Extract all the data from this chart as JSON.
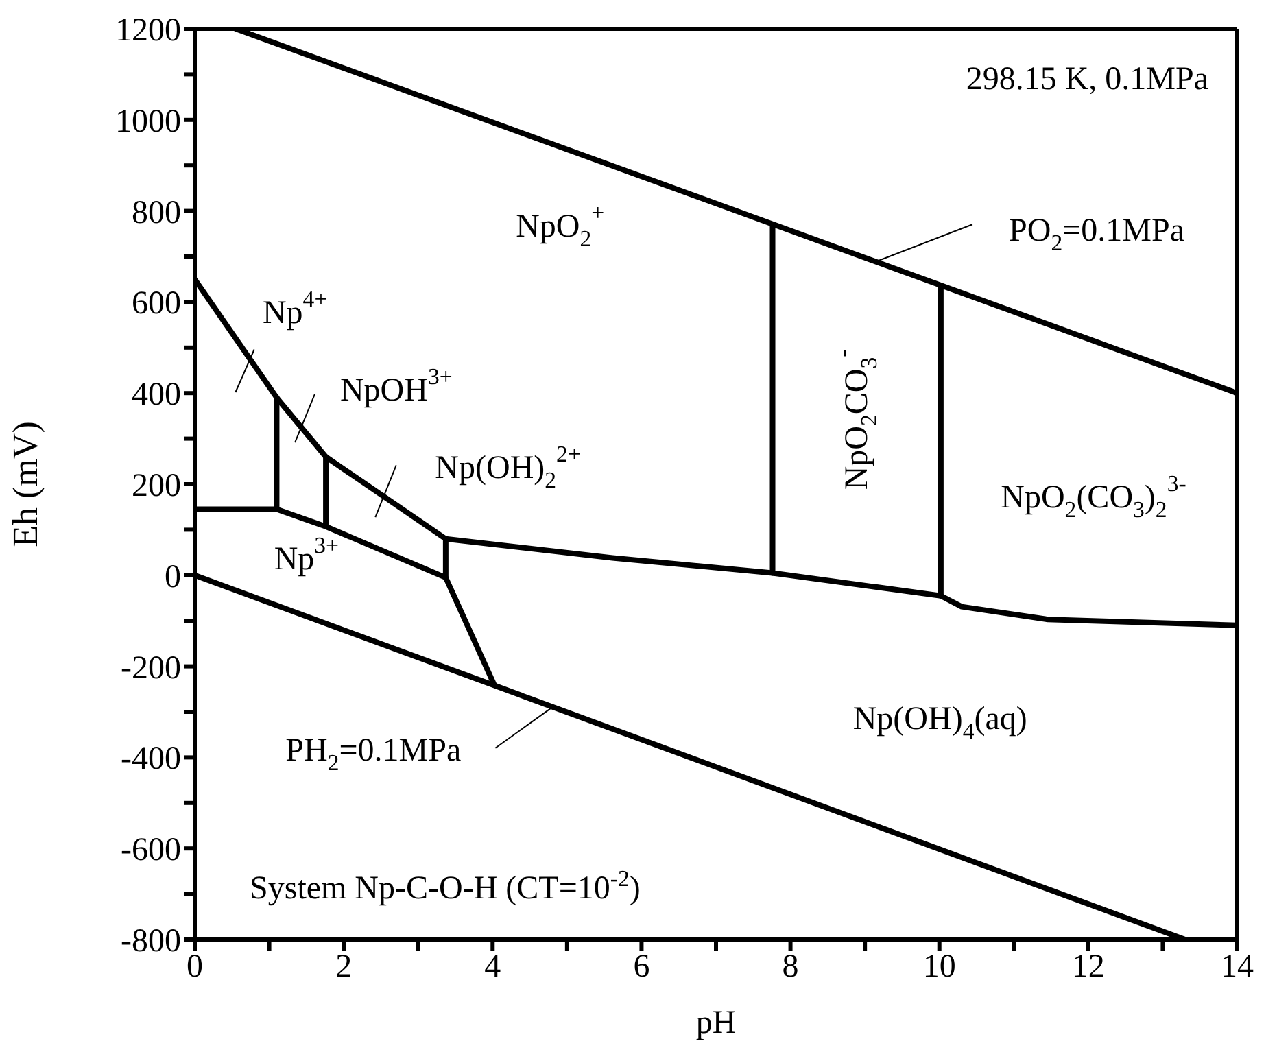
{
  "chart_data": {
    "type": "line",
    "xlabel": "pH",
    "ylabel": "Eh (mV)",
    "xlim": [
      0,
      14
    ],
    "ylim": [
      -800,
      1200
    ],
    "xticks": [
      0,
      {
        "value": 1,
        "label": null
      },
      2,
      {
        "value": 3,
        "label": null
      },
      4,
      {
        "value": 5,
        "label": null
      },
      6,
      {
        "value": 7,
        "label": null
      },
      8,
      {
        "value": 9,
        "label": null
      },
      10,
      {
        "value": 11,
        "label": null
      },
      12,
      {
        "value": 13,
        "label": null
      },
      14
    ],
    "yticks": [
      -800,
      {
        "value": -700,
        "label": null
      },
      -600,
      {
        "value": -500,
        "label": null
      },
      -400,
      {
        "value": -300,
        "label": null
      },
      -200,
      {
        "value": -100,
        "label": null
      },
      0,
      {
        "value": 100,
        "label": null
      },
      200,
      {
        "value": 300,
        "label": null
      },
      400,
      {
        "value": 500,
        "label": null
      },
      600,
      {
        "value": 700,
        "label": null
      },
      800,
      {
        "value": 900,
        "label": null
      },
      1000,
      {
        "value": 1100,
        "label": null
      },
      1200
    ],
    "marker": "none",
    "line_style": "solid",
    "series": [
      {
        "color": "#000000",
        "x": [
          0.55,
          14
        ],
        "values": [
          1200,
          400
        ]
      },
      {
        "color": "#000000",
        "x": [
          0,
          13.3
        ],
        "values": [
          0,
          -800
        ]
      },
      {
        "color": "#000000",
        "x": [
          0,
          1.1,
          1.76,
          3.37,
          5.61,
          7.76,
          10.02,
          10.3,
          11.46,
          14
        ],
        "values": [
          650,
          390,
          260,
          80,
          38,
          5,
          -45,
          -69,
          -97,
          -110
        ]
      },
      {
        "color": "#000000",
        "x": [
          0,
          1.1,
          1.76,
          3.37,
          4.02
        ],
        "values": [
          145,
          145,
          107,
          -5,
          -240
        ]
      },
      {
        "color": "#000000",
        "x": [
          1.1,
          1.1
        ],
        "values": [
          145,
          390
        ]
      },
      {
        "color": "#000000",
        "x": [
          1.76,
          1.76
        ],
        "values": [
          107,
          260
        ]
      },
      {
        "color": "#000000",
        "x": [
          3.37,
          3.37
        ],
        "values": [
          -5,
          80
        ]
      },
      {
        "color": "#000000",
        "x": [
          7.76,
          7.76
        ],
        "values": [
          5,
          766
        ]
      },
      {
        "color": "#000000",
        "x": [
          10.02,
          10.02
        ],
        "values": [
          -45,
          632
        ]
      }
    ],
    "annotations": [
      "298.15 K, 0.1MPa",
      "System  Np-C-O-H (CT=10$^{-2}$)",
      "NpO$_{2}$$^{+}$",
      "Np$^{4+}$",
      "NpOH$^{3+}$",
      "Np(OH)$_{2}$$^{2+}$",
      "Np$^{3+}$",
      "NpO$_{2}$CO$_{3}$$^{-}$",
      "NpO$_{2}$(CO$_{3}$)$_{2}$$^{3-}$",
      "Np(OH)$_{4}$(aq)",
      {
        "text": "PO$_{2}$=0.1MPa",
        "x": 9.16,
        "y": 688
      },
      {
        "text": "PH$_{2}$=0.1MPa",
        "x": 4.81,
        "y": -289
      }
    ]
  }
}
